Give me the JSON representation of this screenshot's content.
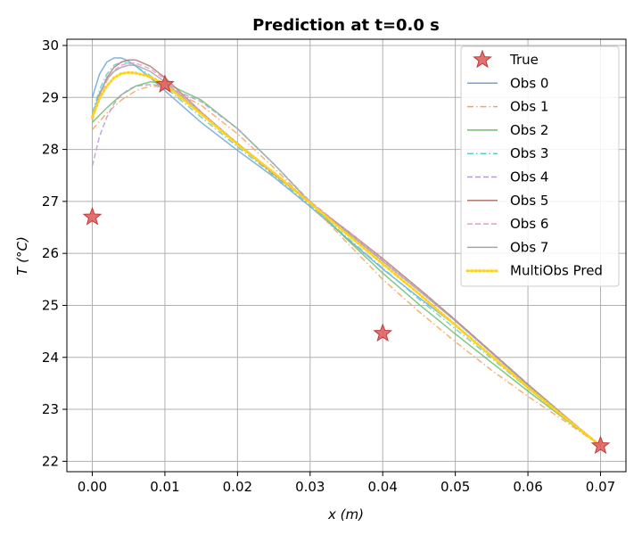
{
  "chart_data": {
    "type": "line",
    "title": "Prediction at t=0.0 s",
    "xlabel": "x (m)",
    "ylabel": "T (°C)",
    "xlim": [
      -0.0035,
      0.0735
    ],
    "ylim": [
      21.8,
      30.12
    ],
    "x_ticks": [
      0.0,
      0.01,
      0.02,
      0.03,
      0.04,
      0.05,
      0.06,
      0.07
    ],
    "x_tick_labels": [
      "0.00",
      "0.01",
      "0.02",
      "0.03",
      "0.04",
      "0.05",
      "0.06",
      "0.07"
    ],
    "y_ticks": [
      22,
      23,
      24,
      25,
      26,
      27,
      28,
      29,
      30
    ],
    "y_tick_labels": [
      "22",
      "23",
      "24",
      "25",
      "26",
      "27",
      "28",
      "29",
      "30"
    ],
    "grid": true,
    "legend_position": "top-right",
    "true_points": {
      "name": "True",
      "color": "#e06262",
      "x": [
        0.0,
        0.01,
        0.04,
        0.07
      ],
      "y": [
        26.7,
        29.25,
        24.46,
        22.3
      ]
    },
    "series": [
      {
        "name": "Obs 0",
        "color": "#6fa3d8",
        "dash": "solid",
        "x": [
          0,
          0.001,
          0.002,
          0.003,
          0.004,
          0.005,
          0.006,
          0.008,
          0.01,
          0.015,
          0.02,
          0.025,
          0.03,
          0.035,
          0.04,
          0.045,
          0.05,
          0.055,
          0.06,
          0.065,
          0.07
        ],
        "y": [
          29.0,
          29.45,
          29.68,
          29.76,
          29.76,
          29.7,
          29.6,
          29.38,
          29.13,
          28.52,
          27.98,
          27.47,
          26.9,
          26.3,
          25.7,
          25.15,
          24.62,
          24.02,
          23.42,
          22.86,
          22.3
        ]
      },
      {
        "name": "Obs 1",
        "color": "#f5a55a",
        "dash": "dashdot",
        "x": [
          0,
          0.002,
          0.004,
          0.006,
          0.008,
          0.01,
          0.015,
          0.02,
          0.025,
          0.03,
          0.035,
          0.04,
          0.045,
          0.05,
          0.055,
          0.06,
          0.065,
          0.07
        ],
        "y": [
          28.38,
          28.7,
          28.95,
          29.13,
          29.22,
          29.2,
          28.85,
          28.3,
          27.65,
          26.95,
          26.22,
          25.5,
          24.88,
          24.3,
          23.75,
          23.25,
          22.78,
          22.3
        ]
      },
      {
        "name": "Obs 2",
        "color": "#6bbf6b",
        "dash": "solid",
        "x": [
          0,
          0.002,
          0.004,
          0.006,
          0.008,
          0.01,
          0.015,
          0.02,
          0.025,
          0.03,
          0.035,
          0.04,
          0.045,
          0.05,
          0.055,
          0.06,
          0.065,
          0.07
        ],
        "y": [
          28.52,
          28.8,
          29.05,
          29.22,
          29.3,
          29.28,
          28.95,
          28.4,
          27.72,
          26.98,
          26.28,
          25.62,
          25.02,
          24.45,
          23.9,
          23.35,
          22.82,
          22.3
        ]
      },
      {
        "name": "Obs 3",
        "color": "#5ccfd1",
        "dash": "dashdot",
        "x": [
          0,
          0.001,
          0.002,
          0.003,
          0.004,
          0.005,
          0.006,
          0.008,
          0.01,
          0.015,
          0.02,
          0.025,
          0.03,
          0.035,
          0.04,
          0.045,
          0.05,
          0.055,
          0.06,
          0.065,
          0.07
        ],
        "y": [
          28.7,
          29.15,
          29.45,
          29.62,
          29.68,
          29.66,
          29.6,
          29.42,
          29.2,
          28.62,
          28.05,
          27.5,
          26.93,
          26.32,
          25.72,
          25.12,
          24.55,
          23.98,
          23.4,
          22.85,
          22.3
        ]
      },
      {
        "name": "Obs 4",
        "color": "#b59ad4",
        "dash": "dashed",
        "x": [
          0,
          0.001,
          0.002,
          0.003,
          0.004,
          0.005,
          0.006,
          0.008,
          0.01,
          0.015,
          0.02,
          0.025,
          0.03,
          0.035,
          0.04,
          0.045,
          0.05,
          0.055,
          0.06,
          0.065,
          0.07
        ],
        "y": [
          27.68,
          28.25,
          28.62,
          28.88,
          29.05,
          29.15,
          29.22,
          29.25,
          29.22,
          28.92,
          28.4,
          27.72,
          27.0,
          26.42,
          25.88,
          25.32,
          24.72,
          24.1,
          23.48,
          22.88,
          22.3
        ]
      },
      {
        "name": "Obs 5",
        "color": "#b07b72",
        "dash": "solid",
        "x": [
          0,
          0.001,
          0.002,
          0.003,
          0.004,
          0.005,
          0.006,
          0.008,
          0.01,
          0.015,
          0.02,
          0.025,
          0.03,
          0.035,
          0.04,
          0.045,
          0.05,
          0.055,
          0.06,
          0.065,
          0.07
        ],
        "y": [
          28.6,
          29.05,
          29.38,
          29.58,
          29.68,
          29.72,
          29.72,
          29.6,
          29.38,
          28.72,
          28.1,
          27.52,
          26.97,
          26.45,
          25.9,
          25.32,
          24.72,
          24.1,
          23.48,
          22.88,
          22.3
        ]
      },
      {
        "name": "Obs 6",
        "color": "#e89ad4",
        "dash": "dashed",
        "x": [
          0,
          0.001,
          0.002,
          0.003,
          0.004,
          0.005,
          0.006,
          0.008,
          0.01,
          0.015,
          0.02,
          0.025,
          0.03,
          0.035,
          0.04,
          0.045,
          0.05,
          0.055,
          0.06,
          0.065,
          0.07
        ],
        "y": [
          28.55,
          29.0,
          29.32,
          29.52,
          29.62,
          29.66,
          29.66,
          29.55,
          29.35,
          28.72,
          28.12,
          27.55,
          27.0,
          26.45,
          25.88,
          25.3,
          24.7,
          24.08,
          23.46,
          22.87,
          22.3
        ]
      },
      {
        "name": "Obs 7",
        "color": "#a5a5a5",
        "dash": "solid",
        "x": [
          0,
          0.001,
          0.002,
          0.003,
          0.004,
          0.005,
          0.006,
          0.008,
          0.01,
          0.015,
          0.02,
          0.025,
          0.03,
          0.035,
          0.04,
          0.045,
          0.05,
          0.055,
          0.06,
          0.065,
          0.07
        ],
        "y": [
          28.65,
          29.08,
          29.35,
          29.5,
          29.58,
          29.62,
          29.62,
          29.5,
          29.3,
          28.7,
          28.12,
          27.55,
          26.98,
          26.42,
          25.85,
          25.28,
          24.7,
          24.08,
          23.46,
          22.87,
          22.3
        ]
      },
      {
        "name": "MultiObs Pred",
        "color": "#ffd21a",
        "dash": "dotted",
        "x": [
          0,
          0.001,
          0.002,
          0.003,
          0.004,
          0.005,
          0.006,
          0.008,
          0.01,
          0.015,
          0.02,
          0.025,
          0.03,
          0.035,
          0.04,
          0.045,
          0.05,
          0.055,
          0.06,
          0.065,
          0.07
        ],
        "y": [
          28.62,
          28.98,
          29.22,
          29.38,
          29.46,
          29.48,
          29.47,
          29.4,
          29.25,
          28.68,
          28.1,
          27.55,
          26.97,
          26.38,
          25.8,
          25.22,
          24.62,
          24.02,
          23.42,
          22.85,
          22.3
        ]
      }
    ]
  }
}
